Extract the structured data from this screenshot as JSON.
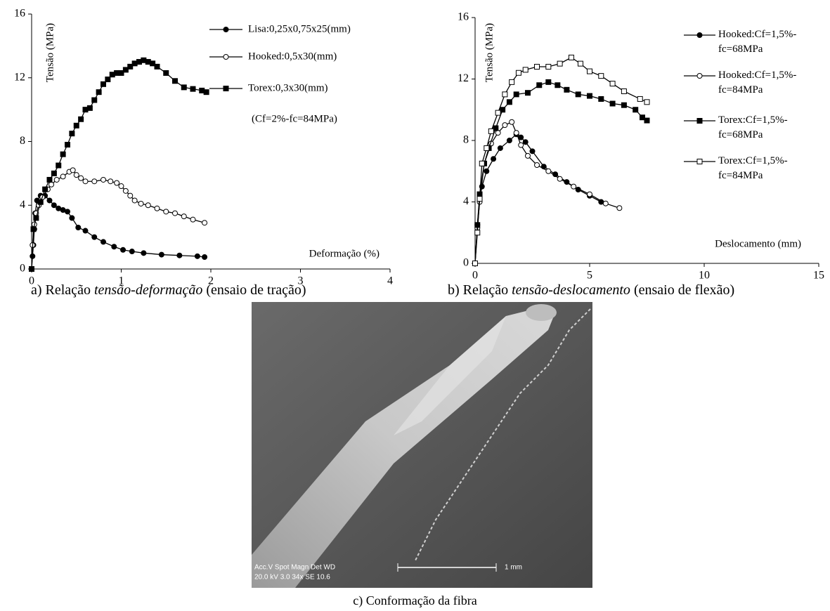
{
  "chart_data": [
    {
      "type": "line",
      "y_label": "Tensão (MPa)",
      "x_label": "Deformação (%)",
      "annotation": "(Cf=2%-fc=84MPa)",
      "xlim": [
        0,
        4
      ],
      "xticks": [
        0,
        1,
        2,
        3,
        4
      ],
      "ylim": [
        0,
        16
      ],
      "yticks": [
        0,
        4,
        8,
        12,
        16
      ],
      "grid": false,
      "caption": [
        "a) Relação ",
        "tensão-deformação",
        " (ensaio de tração)"
      ],
      "series": [
        {
          "name": "Lisa:0,25x0,75x25(mm)",
          "color": "#000000",
          "marker": "circle",
          "marker_fill": "#000000",
          "x": [
            0,
            0.01,
            0.02,
            0.03,
            0.04,
            0.06,
            0.1,
            0.15,
            0.2,
            0.25,
            0.3,
            0.35,
            0.4,
            0.45,
            0.52,
            0.6,
            0.7,
            0.8,
            0.92,
            1.02,
            1.12,
            1.25,
            1.45,
            1.65,
            1.85,
            1.93
          ],
          "values": [
            0,
            0.8,
            1.5,
            2.5,
            3.5,
            4.3,
            4.6,
            4.6,
            4.3,
            4.0,
            3.8,
            3.7,
            3.6,
            3.2,
            2.6,
            2.4,
            2.0,
            1.7,
            1.4,
            1.2,
            1.1,
            1.0,
            0.9,
            0.85,
            0.8,
            0.75
          ]
        },
        {
          "name": "Hooked:0,5x30(mm)",
          "color": "#000000",
          "marker": "circle",
          "marker_fill": "#ffffff",
          "x": [
            0,
            0.01,
            0.03,
            0.05,
            0.08,
            0.12,
            0.18,
            0.22,
            0.28,
            0.35,
            0.42,
            0.46,
            0.5,
            0.55,
            0.6,
            0.7,
            0.8,
            0.88,
            0.95,
            1.0,
            1.05,
            1.1,
            1.15,
            1.22,
            1.3,
            1.4,
            1.5,
            1.6,
            1.7,
            1.8,
            1.93
          ],
          "values": [
            0,
            1.5,
            2.8,
            3.5,
            4.0,
            4.5,
            5.0,
            5.3,
            5.6,
            5.8,
            6.1,
            6.2,
            5.9,
            5.7,
            5.5,
            5.5,
            5.6,
            5.5,
            5.4,
            5.2,
            4.9,
            4.6,
            4.3,
            4.1,
            4.0,
            3.8,
            3.6,
            3.5,
            3.3,
            3.1,
            2.9
          ]
        },
        {
          "name": "Torex:0,3x30(mm)",
          "color": "#000000",
          "marker": "square",
          "marker_fill": "#000000",
          "x": [
            0,
            0.02,
            0.05,
            0.1,
            0.15,
            0.2,
            0.25,
            0.3,
            0.35,
            0.4,
            0.45,
            0.5,
            0.55,
            0.6,
            0.65,
            0.7,
            0.75,
            0.8,
            0.85,
            0.9,
            0.95,
            1.0,
            1.05,
            1.1,
            1.15,
            1.2,
            1.25,
            1.3,
            1.35,
            1.4,
            1.5,
            1.6,
            1.7,
            1.8,
            1.9,
            1.95
          ],
          "values": [
            0,
            2.5,
            3.2,
            4.2,
            5.0,
            5.6,
            6.0,
            6.5,
            7.2,
            7.8,
            8.5,
            9.0,
            9.4,
            10.0,
            10.1,
            10.6,
            11.1,
            11.6,
            11.9,
            12.2,
            12.3,
            12.3,
            12.5,
            12.7,
            12.9,
            13.0,
            13.1,
            13.0,
            12.9,
            12.7,
            12.3,
            11.8,
            11.4,
            11.3,
            11.2,
            11.1
          ]
        }
      ]
    },
    {
      "type": "line",
      "y_label": "Tensão (MPa)",
      "x_label": "Deslocamento (mm)",
      "xlim": [
        0,
        15
      ],
      "xticks": [
        0,
        5,
        10,
        15
      ],
      "ylim": [
        0,
        16
      ],
      "yticks": [
        0,
        4,
        8,
        12,
        16
      ],
      "grid": false,
      "caption": [
        "b) Relação ",
        "tensão-deslocamento",
        " (ensaio de flexão)"
      ],
      "series": [
        {
          "name": "Hooked:Cf=1,5%-fc=68MPa",
          "color": "#000000",
          "marker": "circle",
          "marker_fill": "#000000",
          "x": [
            0,
            0.1,
            0.2,
            0.3,
            0.5,
            0.8,
            1.1,
            1.5,
            1.8,
            2.0,
            2.2,
            2.5,
            3.0,
            3.5,
            4.0,
            4.5,
            5.0,
            5.5
          ],
          "values": [
            0,
            2.5,
            4.2,
            5.0,
            6.0,
            6.8,
            7.5,
            8.0,
            8.4,
            8.2,
            7.9,
            7.3,
            6.3,
            5.8,
            5.3,
            4.8,
            4.4,
            4.0
          ]
        },
        {
          "name": "Hooked:Cf=1,5%-fc=84MPa",
          "color": "#000000",
          "marker": "circle",
          "marker_fill": "#ffffff",
          "x": [
            0,
            0.1,
            0.2,
            0.4,
            0.7,
            1.0,
            1.3,
            1.6,
            1.8,
            2.0,
            2.3,
            2.7,
            3.2,
            3.7,
            4.3,
            5.0,
            5.7,
            6.3
          ],
          "values": [
            0,
            2.3,
            4.0,
            6.5,
            7.8,
            8.5,
            9.0,
            9.2,
            8.5,
            7.7,
            7.0,
            6.4,
            6.0,
            5.5,
            5.0,
            4.5,
            3.9,
            3.6
          ]
        },
        {
          "name": "Torex:Cf=1,5%-fc=68MPa",
          "color": "#000000",
          "marker": "square",
          "marker_fill": "#000000",
          "x": [
            0,
            0.1,
            0.2,
            0.4,
            0.6,
            0.9,
            1.2,
            1.5,
            1.8,
            2.3,
            2.8,
            3.2,
            3.6,
            4.0,
            4.5,
            5.0,
            5.5,
            6.0,
            6.5,
            7.0,
            7.3,
            7.5
          ],
          "values": [
            0,
            2.5,
            4.5,
            6.5,
            7.5,
            8.8,
            10.0,
            10.5,
            11.0,
            11.1,
            11.6,
            11.8,
            11.6,
            11.3,
            11.0,
            10.9,
            10.7,
            10.4,
            10.3,
            10.0,
            9.5,
            9.3
          ]
        },
        {
          "name": "Torex:Cf=1,5%-fc=84MPa",
          "color": "#000000",
          "marker": "square",
          "marker_fill": "#ffffff",
          "x": [
            0,
            0.1,
            0.2,
            0.3,
            0.5,
            0.7,
            1.0,
            1.3,
            1.6,
            1.9,
            2.2,
            2.7,
            3.2,
            3.7,
            4.2,
            4.6,
            5.0,
            5.5,
            6.0,
            6.5,
            7.2,
            7.5
          ],
          "values": [
            0,
            2.0,
            4.2,
            6.5,
            7.5,
            8.6,
            9.8,
            11.0,
            11.8,
            12.4,
            12.6,
            12.8,
            12.8,
            13.0,
            13.4,
            13.0,
            12.5,
            12.2,
            11.7,
            11.2,
            10.7,
            10.5
          ]
        }
      ]
    }
  ],
  "figure_c": {
    "caption": "c) Conformação da fibra",
    "info_top": "Acc.V  Spot Magn    Det  WD",
    "info_bottom": "20.0 kV 3.0   34x     SE   10.6",
    "scale_bar": "1 mm"
  }
}
